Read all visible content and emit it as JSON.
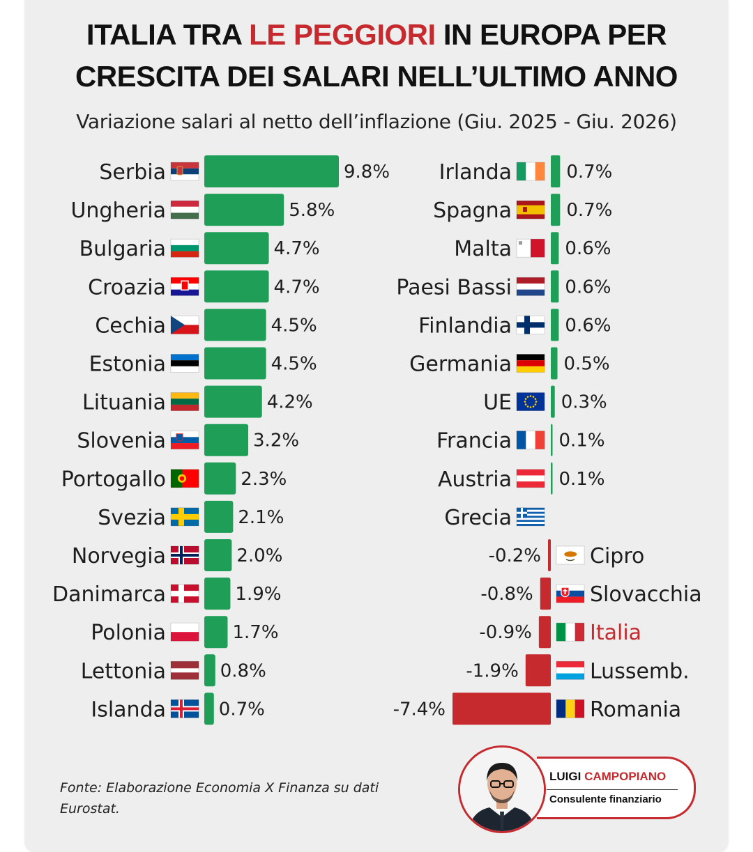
{
  "header": {
    "title_line1_pre": "ITALIA TRA ",
    "title_line1_highlight": "LE PEGGIORI",
    "title_line1_post": " IN EUROPA PER",
    "title_line2": "CRESCITA DEI SALARI NELL’ULTIMO ANNO",
    "subtitle": "Variazione salari al netto dell’inflazione (Giu. 2025 - Giu. 2026)"
  },
  "chart_data": {
    "type": "bar",
    "orientation": "horizontal",
    "unit": "%",
    "colors": {
      "positive": "#1f9e57",
      "negative": "#c62a2e",
      "highlight_label": "#c62a2e"
    },
    "highlight": "Italia",
    "columns": [
      {
        "categories": [
          "Serbia",
          "Ungheria",
          "Bulgaria",
          "Croazia",
          "Cechia",
          "Estonia",
          "Lituania",
          "Slovenia",
          "Portogallo",
          "Svezia",
          "Norvegia",
          "Danimarca",
          "Polonia",
          "Lettonia",
          "Islanda"
        ],
        "values": [
          9.8,
          5.8,
          4.7,
          4.7,
          4.5,
          4.5,
          4.2,
          3.2,
          2.3,
          2.1,
          2.0,
          1.9,
          1.7,
          0.8,
          0.7
        ],
        "value_labels": [
          "9.8%",
          "5.8%",
          "4.7%",
          "4.7%",
          "4.5%",
          "4.5%",
          "4.2%",
          "3.2%",
          "2.3%",
          "2.1%",
          "2.0%",
          "1.9%",
          "1.7%",
          "0.8%",
          "0.7%"
        ],
        "flags": [
          "flag-serbia",
          "flag-hungary",
          "flag-bulgaria",
          "flag-croatia",
          "flag-czechia",
          "flag-estonia",
          "flag-lithuania",
          "flag-slovenia",
          "flag-portugal",
          "flag-sweden",
          "flag-norway",
          "flag-denmark",
          "flag-poland",
          "flag-latvia",
          "flag-iceland"
        ]
      },
      {
        "categories": [
          "Irlanda",
          "Spagna",
          "Malta",
          "Paesi Bassi",
          "Finlandia",
          "Germania",
          "UE",
          "Francia",
          "Austria",
          "Grecia",
          "Cipro",
          "Slovacchia",
          "Italia",
          "Lussemb.",
          "Romania"
        ],
        "values": [
          0.7,
          0.7,
          0.6,
          0.6,
          0.6,
          0.5,
          0.3,
          0.1,
          0.1,
          0.0,
          -0.2,
          -0.8,
          -0.9,
          -1.9,
          -7.4
        ],
        "value_labels": [
          "0.7%",
          "0.7%",
          "0.6%",
          "0.6%",
          "0.6%",
          "0.5%",
          "0.3%",
          "0.1%",
          "0.1%",
          "",
          "-0.2%",
          "-0.8%",
          "-0.9%",
          "-1.9%",
          "-7.4%"
        ],
        "flags": [
          "flag-ireland",
          "flag-spain",
          "flag-malta",
          "flag-netherlands",
          "flag-finland",
          "flag-germany",
          "flag-eu",
          "flag-france",
          "flag-austria",
          "flag-greece",
          "flag-cyprus",
          "flag-slovakia",
          "flag-italy",
          "flag-luxembourg",
          "flag-romania"
        ]
      }
    ]
  },
  "footer": {
    "source": "Fonte: Elaborazione Economia X Finanza su dati Eurostat.",
    "author_first": "LUIGI",
    "author_last": "CAMPOPIANO",
    "author_role": "Consulente finanziario",
    "avatar_icon": "author-portrait"
  }
}
